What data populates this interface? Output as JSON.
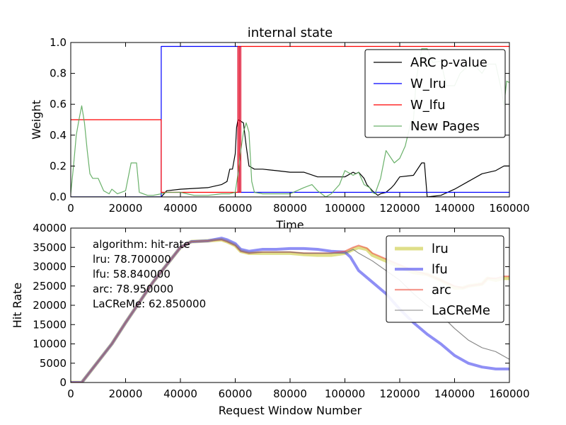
{
  "chart_data": [
    {
      "type": "line",
      "title": "internal state",
      "xlabel": "Time",
      "ylabel": "Weight",
      "xlim": [
        0,
        160000
      ],
      "ylim": [
        0,
        1.0
      ],
      "xticks": [
        0,
        20000,
        40000,
        60000,
        80000,
        100000,
        120000,
        140000,
        160000
      ],
      "yticks": [
        0.0,
        0.2,
        0.4,
        0.6,
        0.8,
        1.0
      ],
      "xtick_labels": [
        "0",
        "20000",
        "40000",
        "60000",
        "80000",
        "100000",
        "120000",
        "140000",
        "160000"
      ],
      "ytick_labels": [
        "0.0",
        "0.2",
        "0.4",
        "0.6",
        "0.8",
        "1.0"
      ],
      "grid": false,
      "legend_position": "top-right",
      "series": [
        {
          "name": "ARC p-value",
          "color": "#000000",
          "x": [
            0,
            2000,
            5000,
            10000,
            20000,
            30000,
            33000,
            35000,
            40000,
            45000,
            50000,
            55000,
            57000,
            58000,
            59000,
            60000,
            60500,
            61000,
            62000,
            63000,
            64000,
            65000,
            66000,
            67000,
            70000,
            75000,
            80000,
            85000,
            90000,
            95000,
            100000,
            103000,
            104000,
            105000,
            107000,
            108000,
            109000,
            110000,
            112000,
            113000,
            115000,
            117000,
            118000,
            120000,
            125000,
            128000,
            129000,
            130000,
            135000,
            140000,
            145000,
            150000,
            155000,
            158000,
            160000
          ],
          "y": [
            0.0,
            0.0,
            0.0,
            0.0,
            0.0,
            0.0,
            0.0,
            0.04,
            0.05,
            0.055,
            0.06,
            0.08,
            0.1,
            0.18,
            0.18,
            0.28,
            0.45,
            0.5,
            0.49,
            0.48,
            0.33,
            0.2,
            0.19,
            0.18,
            0.18,
            0.17,
            0.16,
            0.16,
            0.13,
            0.13,
            0.13,
            0.16,
            0.15,
            0.16,
            0.12,
            0.08,
            0.06,
            0.04,
            0.01,
            0.02,
            0.03,
            0.06,
            0.08,
            0.13,
            0.14,
            0.22,
            0.22,
            0.0,
            0.01,
            0.05,
            0.1,
            0.15,
            0.17,
            0.2,
            0.2
          ]
        },
        {
          "name": "W_lru",
          "color": "#0000ff",
          "x": [
            0,
            33000,
            33000,
            61000,
            61000,
            61500,
            61500,
            62000,
            62000,
            160000
          ],
          "y": [
            0.0,
            0.0,
            0.975,
            0.975,
            0.03,
            0.03,
            0.975,
            0.975,
            0.03,
            0.03
          ]
        },
        {
          "name": "W_lfu",
          "color": "#ff0000",
          "x": [
            0,
            33000,
            33000,
            61000,
            61000,
            61500,
            61500,
            62000,
            62000,
            64000,
            64000,
            160000
          ],
          "y": [
            0.5,
            0.5,
            0.03,
            0.03,
            0.975,
            0.975,
            0.03,
            0.03,
            0.975,
            0.975,
            0.975,
            0.975
          ]
        },
        {
          "name": "New Pages",
          "color": "#5aa95a",
          "x": [
            0,
            1000,
            2000,
            3000,
            4000,
            5000,
            6000,
            7000,
            8000,
            10000,
            12000,
            14000,
            15000,
            17000,
            20000,
            22000,
            24000,
            25000,
            28000,
            30000,
            33000,
            35000,
            38000,
            40000,
            45000,
            50000,
            55000,
            58000,
            60000,
            61000,
            62000,
            63000,
            64000,
            65000,
            66000,
            67000,
            70000,
            75000,
            80000,
            85000,
            88000,
            90000,
            93000,
            95000,
            98000,
            100000,
            103000,
            105000,
            107000,
            109000,
            110000,
            111000,
            113000,
            115000,
            118000,
            120000,
            122000,
            124000,
            125000,
            126000,
            128000,
            130000,
            132000,
            135000,
            137000,
            140000,
            142000,
            145000,
            148000,
            150000,
            152000,
            155000,
            157000,
            158000,
            159000,
            160000
          ],
          "y": [
            0.02,
            0.2,
            0.4,
            0.5,
            0.59,
            0.48,
            0.3,
            0.15,
            0.12,
            0.12,
            0.04,
            0.02,
            0.05,
            0.02,
            0.04,
            0.22,
            0.22,
            0.03,
            0.01,
            0.01,
            0.02,
            0.03,
            0.03,
            0.03,
            0.01,
            0.01,
            0.02,
            0.02,
            0.03,
            0.15,
            0.3,
            0.42,
            0.48,
            0.42,
            0.1,
            0.03,
            0.02,
            0.02,
            0.02,
            0.06,
            0.08,
            0.04,
            0.0,
            0.02,
            0.08,
            0.17,
            0.14,
            0.16,
            0.08,
            0.06,
            0.03,
            0.02,
            0.12,
            0.3,
            0.22,
            0.25,
            0.33,
            0.48,
            0.5,
            0.76,
            0.96,
            0.96,
            0.87,
            0.88,
            0.72,
            0.72,
            0.8,
            0.85,
            0.84,
            0.8,
            0.86,
            0.86,
            0.7,
            0.59,
            0.75,
            0.74
          ]
        }
      ]
    },
    {
      "type": "line",
      "title": "",
      "xlabel": "Request Window Number",
      "ylabel": "Hit Rate",
      "xlim": [
        0,
        160000
      ],
      "ylim": [
        0,
        40000
      ],
      "xticks": [
        0,
        20000,
        40000,
        60000,
        80000,
        100000,
        120000,
        140000,
        160000
      ],
      "yticks": [
        0,
        5000,
        10000,
        15000,
        20000,
        25000,
        30000,
        35000,
        40000
      ],
      "xtick_labels": [
        "0",
        "20000",
        "40000",
        "60000",
        "80000",
        "100000",
        "120000",
        "140000",
        "160000"
      ],
      "ytick_labels": [
        "0",
        "5000",
        "10000",
        "15000",
        "20000",
        "25000",
        "30000",
        "35000",
        "40000"
      ],
      "grid": false,
      "legend_position": "top-right",
      "annotation": {
        "lines": [
          "algorithm:  hit-rate",
          "lru:  78.700000",
          "lfu:  58.840000",
          "arc:  78.950000",
          "LaCReMe:  62.850000"
        ]
      },
      "series": [
        {
          "name": "lru",
          "color": "#d4d462",
          "x": [
            0,
            4000,
            15000,
            20000,
            30000,
            40000,
            44000,
            50000,
            55000,
            57000,
            60000,
            62000,
            65000,
            70000,
            75000,
            80000,
            85000,
            90000,
            95000,
            100000,
            103000,
            105000,
            108000,
            110000,
            115000,
            120000,
            125000,
            130000,
            135000,
            140000,
            143000,
            145000,
            150000,
            152000,
            155000,
            158000,
            160000
          ],
          "y": [
            0,
            0,
            10000,
            15500,
            26000,
            35000,
            36500,
            36700,
            37000,
            36500,
            35500,
            34000,
            33500,
            33500,
            33500,
            33500,
            33200,
            33000,
            33000,
            33500,
            34500,
            35000,
            34500,
            33000,
            31500,
            30000,
            28500,
            28000,
            26500,
            24500,
            24500,
            25000,
            25500,
            27000,
            26500,
            27000,
            27000
          ]
        },
        {
          "name": "lfu",
          "color": "#4444ee",
          "x": [
            0,
            4000,
            15000,
            20000,
            30000,
            40000,
            44000,
            50000,
            55000,
            57000,
            60000,
            62000,
            65000,
            70000,
            75000,
            80000,
            85000,
            90000,
            95000,
            100000,
            102000,
            105000,
            110000,
            115000,
            120000,
            125000,
            130000,
            135000,
            140000,
            145000,
            150000,
            155000,
            158000,
            160000
          ],
          "y": [
            0,
            0,
            10000,
            15500,
            26000,
            35000,
            36500,
            36700,
            37400,
            37000,
            36000,
            34500,
            34000,
            34500,
            34500,
            34700,
            34700,
            34500,
            34000,
            33800,
            32500,
            29000,
            26000,
            23000,
            19000,
            15500,
            12500,
            10000,
            7000,
            5000,
            4000,
            3500,
            3500,
            3500
          ]
        },
        {
          "name": "arc",
          "color": "#ee5544",
          "x": [
            0,
            4000,
            15000,
            20000,
            30000,
            40000,
            44000,
            50000,
            55000,
            57000,
            60000,
            62000,
            65000,
            70000,
            75000,
            80000,
            85000,
            90000,
            95000,
            100000,
            103000,
            105000,
            108000,
            110000,
            115000,
            120000,
            125000,
            130000,
            135000,
            140000,
            143000,
            145000,
            150000,
            152000,
            155000,
            158000,
            160000
          ],
          "y": [
            0,
            0,
            10000,
            15500,
            26000,
            35000,
            36500,
            36700,
            37000,
            36500,
            35500,
            34000,
            33500,
            33800,
            33800,
            33800,
            33500,
            33500,
            33500,
            34000,
            35000,
            35500,
            34800,
            33500,
            32000,
            30500,
            29000,
            28000,
            26500,
            25000,
            24500,
            25000,
            25500,
            27000,
            27000,
            27500,
            27500
          ]
        },
        {
          "name": "LaCReMe",
          "color": "#777777",
          "x": [
            0,
            4000,
            15000,
            20000,
            30000,
            40000,
            44000,
            50000,
            55000,
            57000,
            60000,
            62000,
            65000,
            70000,
            75000,
            80000,
            85000,
            90000,
            95000,
            100000,
            103000,
            105000,
            110000,
            115000,
            120000,
            125000,
            130000,
            135000,
            140000,
            145000,
            150000,
            155000,
            160000
          ],
          "y": [
            0,
            0,
            10000,
            15500,
            26000,
            35000,
            36500,
            36700,
            37000,
            36500,
            35500,
            34000,
            33500,
            33800,
            33800,
            33800,
            33500,
            33500,
            33500,
            33500,
            34500,
            33500,
            31500,
            29000,
            26500,
            23000,
            20000,
            17500,
            14000,
            11000,
            9000,
            8000,
            6000
          ]
        }
      ]
    }
  ]
}
